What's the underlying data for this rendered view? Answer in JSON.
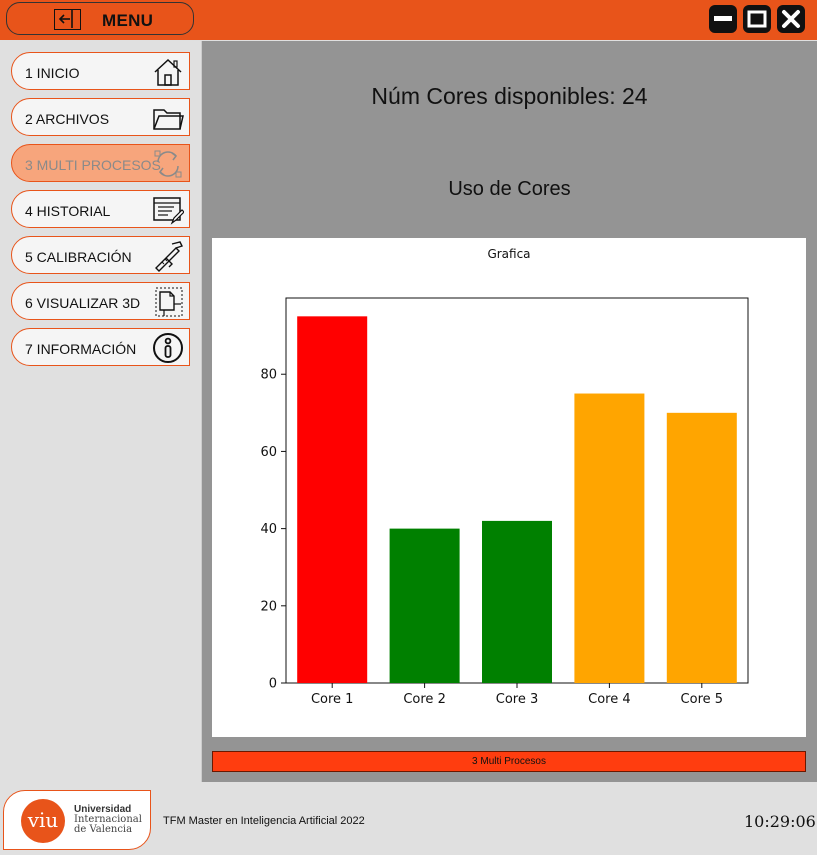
{
  "header": {
    "menu_label": "MENU"
  },
  "sidebar": {
    "items": [
      {
        "label": "1 INICIO",
        "icon": "home-icon"
      },
      {
        "label": "2 ARCHIVOS",
        "icon": "folder-icon"
      },
      {
        "label": "3 MULTI PROCESOS",
        "icon": "refresh-icon",
        "active": true
      },
      {
        "label": "4 HISTORIAL",
        "icon": "history-icon"
      },
      {
        "label": "5 CALIBRACIÓN",
        "icon": "caliper-icon"
      },
      {
        "label": "6 VISUALIZAR 3D",
        "icon": "3d-box-icon"
      },
      {
        "label": "7 INFORMACIÓN",
        "icon": "info-icon"
      }
    ]
  },
  "main": {
    "cores_text": "Núm Cores disponibles: 24",
    "usage_title": "Uso de Cores",
    "status_text": "3 Multi Procesos"
  },
  "footer": {
    "logo_mark": "viu",
    "logo_line1": "Universidad",
    "logo_line2": "Internacional",
    "logo_line3": "de Valencia",
    "caption": "TFM Master en Inteligencia Artificial 2022",
    "clock": "10:29:06"
  },
  "colors": {
    "accent": "#e8541a",
    "red": "#ff0000",
    "green": "#008000",
    "orange": "#ffa500"
  },
  "chart_data": {
    "type": "bar",
    "title": "Grafica",
    "categories": [
      "Core 1",
      "Core 2",
      "Core 3",
      "Core 4",
      "Core 5"
    ],
    "values": [
      95,
      40,
      42,
      75,
      70
    ],
    "colors": [
      "#ff0000",
      "#008000",
      "#008000",
      "#ffa500",
      "#ffa500"
    ],
    "yticks": [
      0,
      20,
      40,
      60,
      80
    ],
    "ylim": [
      0,
      99.75
    ],
    "xlabel": "",
    "ylabel": ""
  }
}
